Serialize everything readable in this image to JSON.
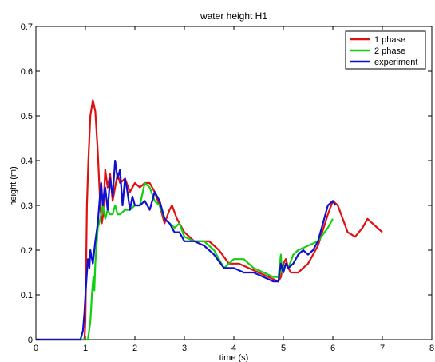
{
  "chart_data": {
    "type": "line",
    "title": "water height H1",
    "xlabel": "time (s)",
    "ylabel": "height (m)",
    "xlim": [
      0,
      8
    ],
    "ylim": [
      0,
      0.7
    ],
    "xticks": [
      0,
      1,
      2,
      3,
      4,
      5,
      6,
      7,
      8
    ],
    "yticks": [
      0,
      0.1,
      0.2,
      0.3,
      0.4,
      0.5,
      0.6,
      0.7
    ],
    "grid": false,
    "legend_position": "top-right",
    "series": [
      {
        "name": "1 phase",
        "color": "#e01010",
        "x": [
          0,
          0.98,
          1.0,
          1.03,
          1.06,
          1.1,
          1.15,
          1.2,
          1.25,
          1.3,
          1.33,
          1.36,
          1.4,
          1.45,
          1.5,
          1.55,
          1.6,
          1.65,
          1.7,
          1.8,
          1.9,
          2.0,
          2.1,
          2.2,
          2.3,
          2.4,
          2.5,
          2.6,
          2.7,
          2.75,
          2.85,
          3.0,
          3.2,
          3.5,
          3.7,
          3.9,
          4.1,
          4.3,
          4.5,
          4.7,
          4.9,
          4.95,
          5.0,
          5.05,
          5.1,
          5.15,
          5.2,
          5.3,
          5.5,
          5.7,
          5.9,
          6.0,
          6.1,
          6.2,
          6.3,
          6.45,
          6.6,
          6.7,
          6.8,
          6.9,
          7.0
        ],
        "y": [
          0,
          0.0,
          0.04,
          0.3,
          0.4,
          0.5,
          0.535,
          0.51,
          0.42,
          0.3,
          0.26,
          0.28,
          0.38,
          0.34,
          0.37,
          0.31,
          0.34,
          0.37,
          0.35,
          0.36,
          0.33,
          0.35,
          0.34,
          0.35,
          0.35,
          0.33,
          0.3,
          0.26,
          0.29,
          0.3,
          0.27,
          0.24,
          0.22,
          0.22,
          0.2,
          0.17,
          0.17,
          0.16,
          0.15,
          0.14,
          0.13,
          0.14,
          0.17,
          0.18,
          0.16,
          0.15,
          0.15,
          0.15,
          0.17,
          0.21,
          0.28,
          0.31,
          0.3,
          0.27,
          0.24,
          0.23,
          0.25,
          0.27,
          0.26,
          0.25,
          0.24
        ]
      },
      {
        "name": "2 phase",
        "color": "#10d010",
        "x": [
          0,
          1.05,
          1.1,
          1.13,
          1.16,
          1.18,
          1.2,
          1.25,
          1.3,
          1.35,
          1.4,
          1.45,
          1.5,
          1.55,
          1.6,
          1.65,
          1.7,
          1.8,
          1.9,
          2.0,
          2.1,
          2.2,
          2.3,
          2.4,
          2.5,
          2.6,
          2.7,
          2.8,
          2.9,
          3.0,
          3.2,
          3.4,
          3.6,
          3.8,
          4.0,
          4.2,
          4.4,
          4.6,
          4.8,
          4.9,
          4.95,
          4.97,
          5.0,
          5.05,
          5.1,
          5.2,
          5.3,
          5.5,
          5.7,
          5.9,
          6.0
        ],
        "y": [
          0,
          0.0,
          0.04,
          0.1,
          0.14,
          0.11,
          0.17,
          0.25,
          0.27,
          0.3,
          0.27,
          0.29,
          0.28,
          0.28,
          0.3,
          0.28,
          0.28,
          0.29,
          0.29,
          0.3,
          0.3,
          0.35,
          0.34,
          0.31,
          0.3,
          0.27,
          0.26,
          0.25,
          0.26,
          0.23,
          0.22,
          0.22,
          0.2,
          0.16,
          0.18,
          0.18,
          0.16,
          0.15,
          0.14,
          0.14,
          0.19,
          0.15,
          0.16,
          0.17,
          0.16,
          0.19,
          0.2,
          0.21,
          0.22,
          0.25,
          0.27
        ]
      },
      {
        "name": "experiment",
        "color": "#1010d0",
        "x": [
          0,
          0.9,
          0.95,
          0.98,
          1.0,
          1.03,
          1.05,
          1.08,
          1.1,
          1.15,
          1.2,
          1.25,
          1.3,
          1.32,
          1.35,
          1.38,
          1.4,
          1.45,
          1.5,
          1.55,
          1.6,
          1.65,
          1.7,
          1.75,
          1.8,
          1.85,
          1.9,
          1.95,
          2.0,
          2.1,
          2.2,
          2.3,
          2.4,
          2.5,
          2.6,
          2.7,
          2.8,
          2.9,
          3.0,
          3.2,
          3.4,
          3.6,
          3.8,
          4.0,
          4.2,
          4.4,
          4.6,
          4.8,
          4.9,
          4.95,
          5.0,
          5.05,
          5.1,
          5.2,
          5.3,
          5.4,
          5.5,
          5.6,
          5.7,
          5.8,
          5.9,
          6.0,
          6.05
        ],
        "y": [
          0,
          0.0,
          0.02,
          0.06,
          0.1,
          0.15,
          0.18,
          0.16,
          0.2,
          0.17,
          0.22,
          0.26,
          0.33,
          0.35,
          0.3,
          0.33,
          0.34,
          0.29,
          0.36,
          0.32,
          0.4,
          0.36,
          0.38,
          0.3,
          0.36,
          0.33,
          0.29,
          0.32,
          0.3,
          0.3,
          0.31,
          0.29,
          0.33,
          0.31,
          0.27,
          0.26,
          0.24,
          0.24,
          0.22,
          0.22,
          0.21,
          0.19,
          0.16,
          0.16,
          0.15,
          0.15,
          0.14,
          0.13,
          0.13,
          0.17,
          0.15,
          0.17,
          0.16,
          0.17,
          0.19,
          0.2,
          0.19,
          0.2,
          0.22,
          0.26,
          0.3,
          0.31,
          0.3
        ]
      }
    ]
  }
}
